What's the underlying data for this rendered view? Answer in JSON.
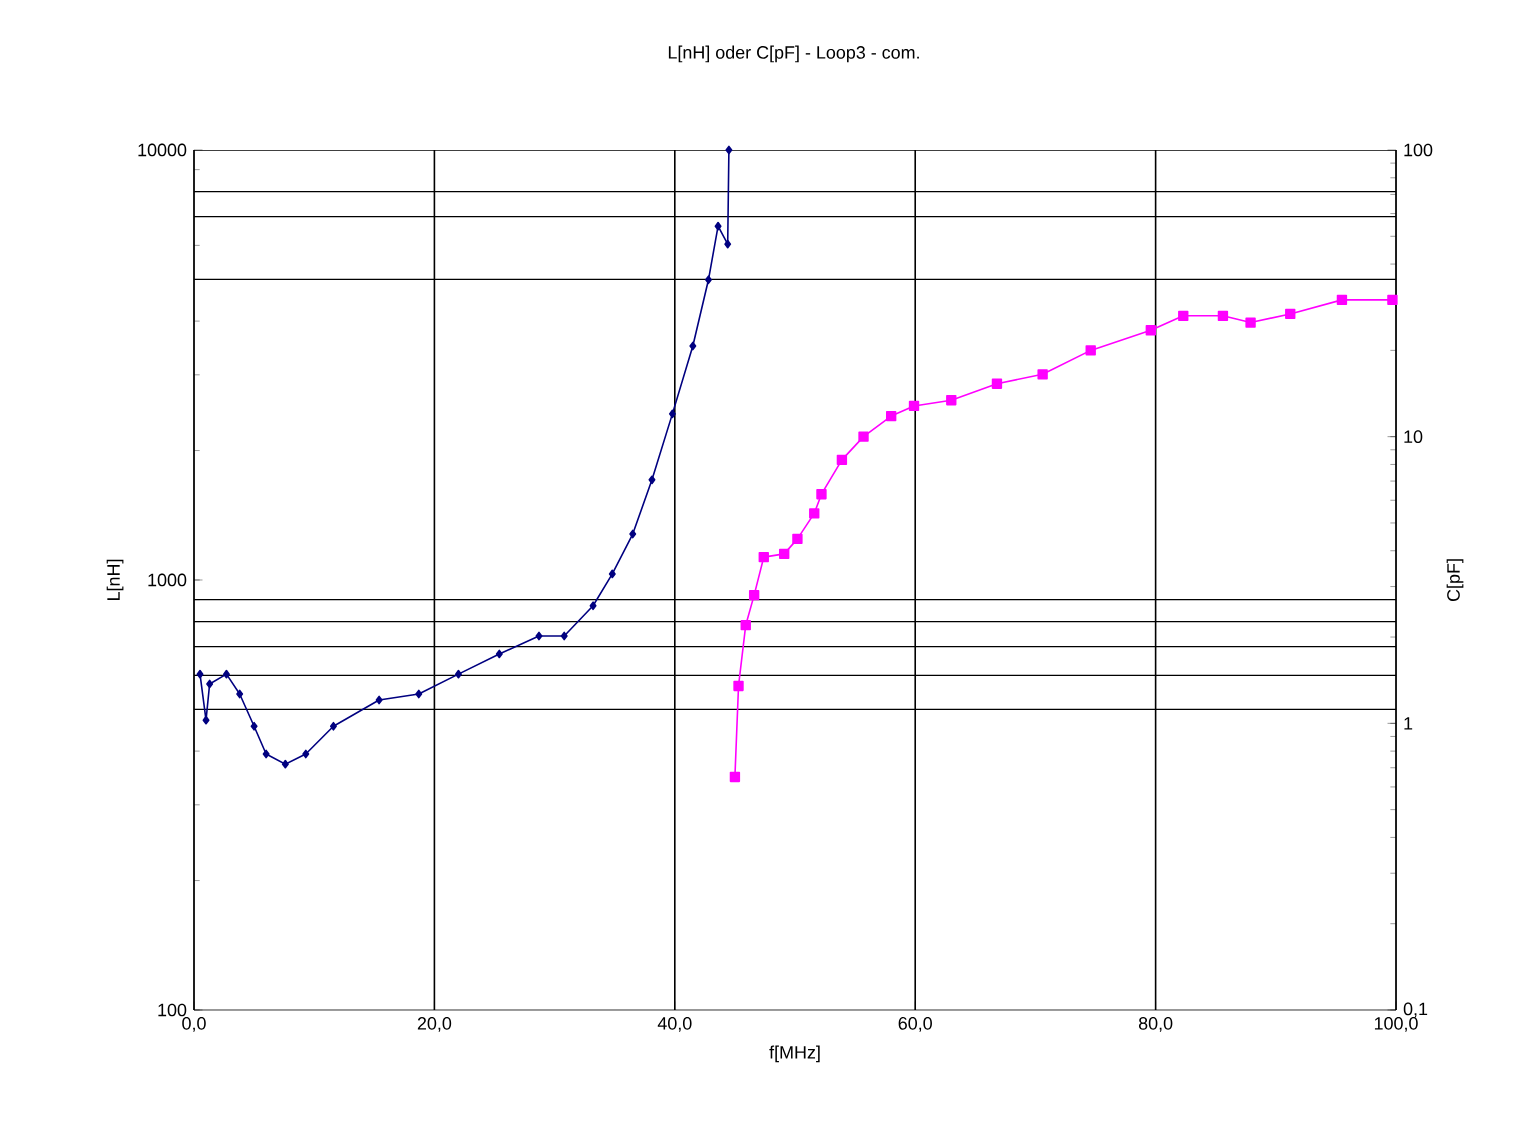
{
  "chart_data": [
    {
      "type": "line",
      "title": "L[nH] oder C[pF] - Loop3 - com.",
      "xlabel": "f[MHz]",
      "ylabel": "L[nH]",
      "xlim": [
        0,
        100
      ],
      "xticks": [
        {
          "value": 0,
          "label": "0,0"
        },
        {
          "value": 20,
          "label": "20,0"
        },
        {
          "value": 40,
          "label": "40,0"
        },
        {
          "value": 60,
          "label": "60,0"
        },
        {
          "value": 80,
          "label": "80,0"
        },
        {
          "value": 100,
          "label": "100,0"
        }
      ],
      "ylim": [
        100,
        10000
      ],
      "yticks": [
        100,
        1000,
        10000
      ],
      "log": "y",
      "grid": "x",
      "line_style": "solid",
      "marker": "diamond",
      "ref_lines": [
        {
          "axis": "y",
          "value": 8000,
          "color": "#000000"
        },
        {
          "axis": "y",
          "value": 7000,
          "color": "#000000"
        },
        {
          "axis": "y",
          "value": 5000,
          "color": "#000000"
        },
        {
          "axis": "y",
          "value": 900,
          "color": "#000000"
        },
        {
          "axis": "y",
          "value": 800,
          "color": "#000000"
        },
        {
          "axis": "y",
          "value": 700,
          "color": "#000000"
        },
        {
          "axis": "y",
          "value": 600,
          "color": "#000000"
        },
        {
          "axis": "y",
          "value": 500,
          "color": "#000000"
        }
      ],
      "series": [
        {
          "color": "#000080",
          "x": [
            0.5,
            1,
            1.3,
            2.7,
            3.8,
            5,
            6,
            7.6,
            9.3,
            11.6,
            15.4,
            18.7,
            22,
            25.4,
            28.7,
            30.8,
            33.2,
            34.8,
            36.5,
            38.1,
            39.8,
            41.5,
            42.8,
            43.6,
            44.4,
            44.5
          ],
          "values": [
            604,
            472,
            573,
            604,
            543,
            457,
            394,
            373,
            394,
            457,
            526,
            543,
            604,
            673,
            741,
            741,
            871,
            1033,
            1279,
            1710,
            2434,
            3500,
            4990,
            6650,
            6040,
            10000
          ]
        }
      ]
    },
    {
      "type": "line",
      "ylabel": "C[pF]",
      "xlim": [
        0,
        100
      ],
      "ylim": [
        0.1,
        100
      ],
      "yticks": [
        {
          "value": 0.1,
          "label": "0,1"
        },
        1,
        10,
        100
      ],
      "log": "y",
      "tick_labels": "y",
      "line_style": "solid",
      "marker": "square",
      "series": [
        {
          "color": "#ff00ff",
          "x": [
            45,
            45.3,
            45.9,
            46.6,
            47.4,
            49.1,
            50.2,
            51.6,
            52.2,
            53.9,
            55.7,
            58,
            59.9,
            63,
            66.8,
            70.6,
            74.6,
            79.6,
            82.3,
            85.6,
            87.9,
            91.2,
            95.5,
            99.7
          ],
          "values": [
            0.65,
            1.35,
            2.2,
            2.8,
            3.8,
            3.9,
            4.4,
            5.4,
            6.3,
            8.3,
            10,
            11.8,
            12.8,
            13.4,
            15.3,
            16.5,
            20,
            23.5,
            26.4,
            26.4,
            25,
            26.8,
            30,
            30
          ]
        }
      ]
    }
  ]
}
